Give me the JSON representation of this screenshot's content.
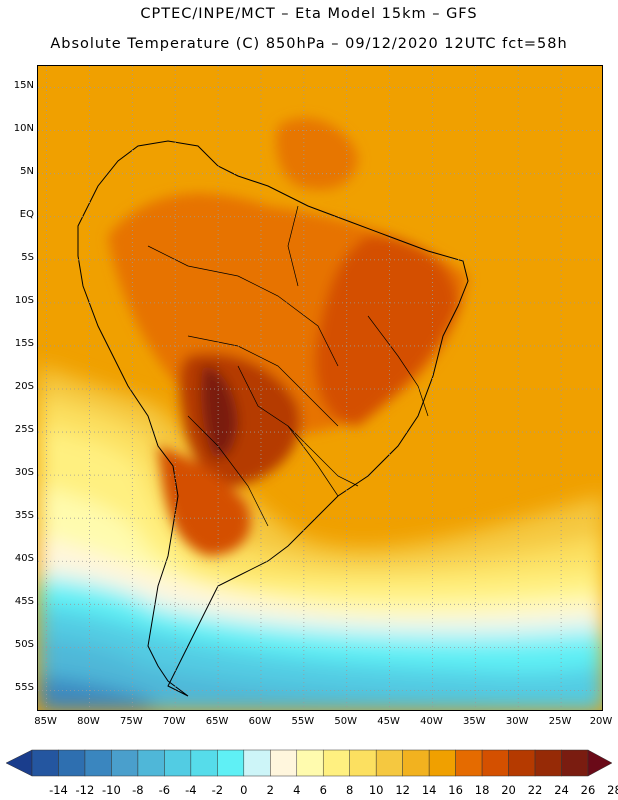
{
  "header": {
    "line1": "CPTEC/INPE/MCT –  Eta Model 15km – GFS",
    "line2": "Absolute Temperature (C) 850hPa – 09/12/2020 12UTC fct=58h"
  },
  "map": {
    "lat_labels": [
      "15N",
      "10N",
      "5N",
      "EQ",
      "5S",
      "10S",
      "15S",
      "20S",
      "25S",
      "30S",
      "35S",
      "40S",
      "45S",
      "50S",
      "55S"
    ],
    "lat_values": [
      15,
      10,
      5,
      0,
      -5,
      -10,
      -15,
      -20,
      -25,
      -30,
      -35,
      -40,
      -45,
      -50,
      -55
    ],
    "lon_labels": [
      "85W",
      "80W",
      "75W",
      "70W",
      "65W",
      "60W",
      "55W",
      "50W",
      "45W",
      "40W",
      "35W",
      "30W",
      "25W",
      "20W"
    ],
    "lon_values": [
      -85,
      -80,
      -75,
      -70,
      -65,
      -60,
      -55,
      -50,
      -45,
      -40,
      -35,
      -30,
      -25,
      -20
    ],
    "lat_range": [
      -57.5,
      17.5
    ],
    "lon_range": [
      -86,
      -20
    ]
  },
  "colorbar": {
    "labels": [
      "-14",
      "-12",
      "-10",
      "-8",
      "-6",
      "-4",
      "-2",
      "0",
      "2",
      "4",
      "6",
      "8",
      "10",
      "12",
      "14",
      "16",
      "18",
      "20",
      "22",
      "24",
      "26",
      "28"
    ],
    "colors": [
      "#1a3d8c",
      "#2456a0",
      "#2e6fb0",
      "#3a86bf",
      "#4a9fcc",
      "#4fb7d8",
      "#52cce3",
      "#56dcea",
      "#5ff0f5",
      "#cdf5f8",
      "#fff6dd",
      "#fffbae",
      "#fff080",
      "#fce060",
      "#f5c840",
      "#f2b21f",
      "#f0a000",
      "#e56b00",
      "#d45000",
      "#b53a00",
      "#962a06",
      "#7a1c10",
      "#6a0a18"
    ]
  }
}
